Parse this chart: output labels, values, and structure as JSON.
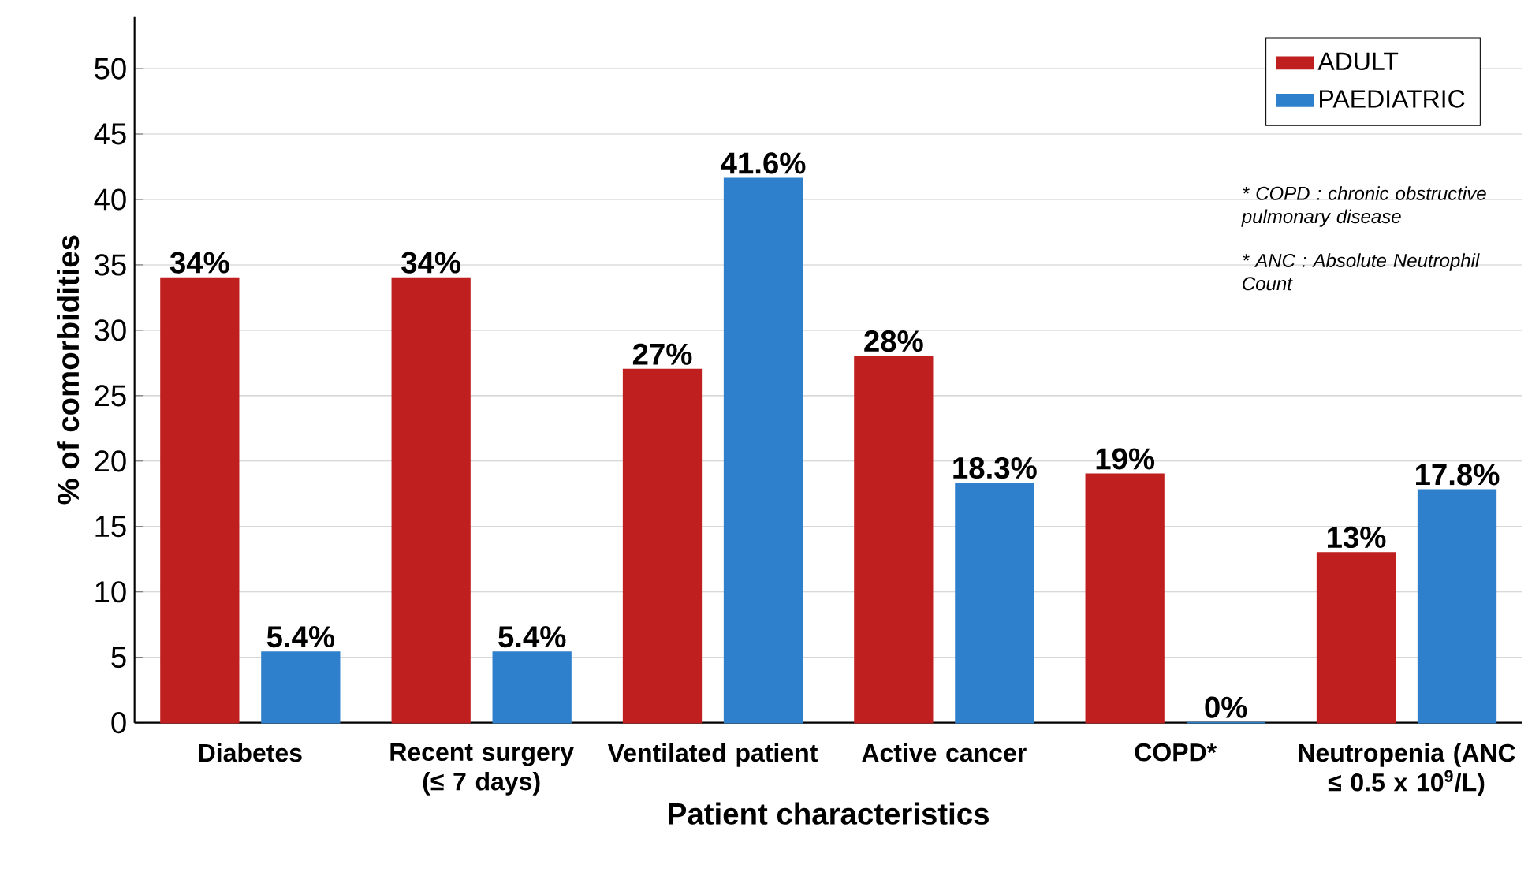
{
  "chart_data": {
    "type": "bar",
    "xlabel": "Patient characteristics",
    "ylabel": "% of comorbidities",
    "categories": [
      "Diabetes",
      "Recent surgery (≤ 7 days)",
      "Ventilated patient",
      "Active cancer",
      "COPD*",
      "Neutropenia (ANC ≤ 0.5 x 10$^{9}$/L)"
    ],
    "series": [
      {
        "name": "ADULT",
        "color": "#c01f1f",
        "values": [
          34,
          34,
          27,
          28,
          19,
          13
        ],
        "value_labels": [
          "34%",
          "34%",
          "27%",
          "28%",
          "19%",
          "13%"
        ]
      },
      {
        "name": "PAEDIATRIC",
        "color": "#2f80cc",
        "values": [
          5.4,
          5.4,
          41.6,
          18.3,
          0,
          17.8
        ],
        "value_labels": [
          "5.4%",
          "5.4%",
          "41.6%",
          "18.3%",
          "0%",
          "17.8%"
        ]
      }
    ],
    "ylim": [
      0,
      54
    ],
    "yticks": [
      0,
      5,
      10,
      15,
      20,
      25,
      30,
      35,
      40,
      45,
      50
    ],
    "grid": "y",
    "legend": "top right",
    "annotations": [
      "* COPD : chronic obstructive pulmonary disease",
      "* ANC : Absolute Neutrophil Count"
    ]
  }
}
